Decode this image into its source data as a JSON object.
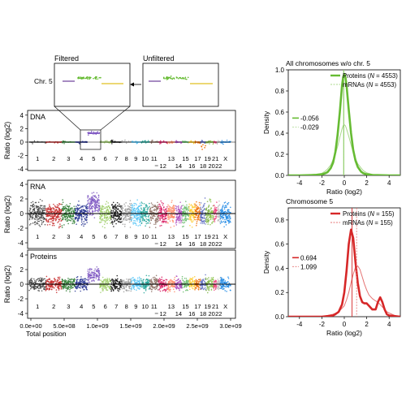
{
  "colors": {
    "green": "#66bb33",
    "green_light": "#a8d88a",
    "red": "#d62728",
    "red_light": "#e57373",
    "chromosome_palette": [
      "#444444",
      "#c62828",
      "#2e7d32",
      "#283593",
      "#7e57c2",
      "#9ccc65",
      "#111111",
      "#9e9e9e",
      "#4fc3f7",
      "#26a69a",
      "#8d6e63",
      "#d81b60",
      "#ff8a65",
      "#ab47bc",
      "#66bb6a",
      "#ffca28",
      "#ef6c00",
      "#5c6bc0",
      "#7cb342",
      "#8bc34a",
      "#ec407a",
      "#bdbdbd",
      "#1e88e5"
    ]
  },
  "chromosomes": [
    "1",
    "2",
    "3",
    "4",
    "5",
    "6",
    "7",
    "8",
    "9",
    "10",
    "11",
    "12",
    "13",
    "14",
    "15",
    "16",
    "17",
    "18",
    "19",
    "20",
    "21",
    "22",
    "X"
  ],
  "zoom": {
    "filtered_title": "Filtered",
    "unfiltered_title": "Unfiltered",
    "chr_label": "Chr. 5"
  },
  "genome_panels": {
    "ylabel": "Ratio (log2)",
    "xlabel": "Total position",
    "xtick_labels": [
      "0.0e+00",
      "5.0e+08",
      "1.0e+09",
      "1.5e+09",
      "2.0e+09",
      "2.5e+09",
      "3.0e+09"
    ],
    "panels": [
      {
        "label": "DNA",
        "yticks": [
          "4",
          "2",
          "0",
          "-2",
          "-4"
        ]
      },
      {
        "label": "RNA",
        "yticks": [
          "4",
          "2",
          "0",
          "-2",
          "-4"
        ]
      },
      {
        "label": "Proteins",
        "yticks": [
          "4",
          "2",
          "0",
          "-2",
          "-4"
        ]
      }
    ]
  },
  "chart_data": [
    {
      "type": "line",
      "title": "All chromosomes w/o chr. 5",
      "xlabel": "Ratio (log2)",
      "ylabel": "Density",
      "xlim": [
        -5,
        5
      ],
      "ylim": [
        0,
        1.0
      ],
      "xticks": [
        "-4",
        "-2",
        "0",
        "2",
        "4"
      ],
      "yticks": [
        "0.0",
        "0.2",
        "0.4",
        "0.6",
        "0.8",
        "1.0"
      ],
      "legend": [
        {
          "label": "Proteins (N = 4553)",
          "text": "Proteins (",
          "italic": "N",
          "rest": " = 4553)"
        },
        {
          "label": "mRNAs (N = 4553)",
          "text": "mRNAs (",
          "italic": "N",
          "rest": " = 4553)"
        }
      ],
      "medians": {
        "proteins": "-0.056",
        "mrnas": "-0.029"
      },
      "series": [
        {
          "name": "Proteins",
          "x": [
            -5,
            -4,
            -3,
            -2.5,
            -2,
            -1.7,
            -1.5,
            -1.2,
            -1,
            -0.8,
            -0.6,
            -0.4,
            -0.2,
            -0.1,
            0,
            0.1,
            0.2,
            0.4,
            0.6,
            0.8,
            1,
            1.2,
            1.5,
            1.7,
            2,
            2.5,
            3,
            4,
            5
          ],
          "y": [
            0,
            0,
            0.002,
            0.005,
            0.01,
            0.02,
            0.03,
            0.07,
            0.12,
            0.22,
            0.38,
            0.6,
            0.85,
            0.93,
            0.96,
            0.93,
            0.85,
            0.62,
            0.4,
            0.24,
            0.14,
            0.08,
            0.035,
            0.02,
            0.01,
            0.004,
            0.002,
            0,
            0
          ]
        },
        {
          "name": "mRNAs",
          "x": [
            -5,
            -4,
            -3,
            -2.5,
            -2,
            -1.7,
            -1.5,
            -1.2,
            -1,
            -0.8,
            -0.6,
            -0.4,
            -0.2,
            -0.1,
            0,
            0.1,
            0.2,
            0.4,
            0.6,
            0.8,
            1,
            1.2,
            1.5,
            1.7,
            2,
            2.5,
            3,
            4,
            5
          ],
          "y": [
            0,
            0,
            0.004,
            0.01,
            0.02,
            0.04,
            0.06,
            0.1,
            0.15,
            0.2,
            0.27,
            0.36,
            0.44,
            0.47,
            0.48,
            0.47,
            0.44,
            0.37,
            0.29,
            0.22,
            0.16,
            0.11,
            0.07,
            0.045,
            0.025,
            0.01,
            0.004,
            0,
            0
          ]
        }
      ]
    },
    {
      "type": "line",
      "title": "Chromosome 5",
      "xlabel": "Ratio (log2)",
      "ylabel": "Density",
      "xlim": [
        -5,
        5
      ],
      "ylim": [
        0,
        0.9
      ],
      "xticks": [
        "-4",
        "-2",
        "0",
        "2",
        "4"
      ],
      "yticks": [
        "0.0",
        "0.2",
        "0.4",
        "0.6",
        "0.8"
      ],
      "legend": [
        {
          "label": "Proteins (N = 155)",
          "text": "Proteins (",
          "italic": "N",
          "rest": " = 155)"
        },
        {
          "label": "mRNAs (N = 155)",
          "text": "mRNAs (",
          "italic": "N",
          "rest": " = 155)"
        }
      ],
      "medians": {
        "proteins": "0.694",
        "mrnas": "1.099"
      },
      "series": [
        {
          "name": "Proteins",
          "x": [
            -5,
            -2,
            -1.5,
            -1,
            -0.8,
            -0.5,
            -0.2,
            0,
            0.2,
            0.4,
            0.6,
            0.8,
            1,
            1.2,
            1.4,
            1.6,
            1.8,
            2.0,
            2.2,
            2.5,
            2.8,
            3.0,
            3.2,
            3.4,
            3.6,
            3.8,
            4,
            4.5,
            5
          ],
          "y": [
            0,
            0,
            0.005,
            0.01,
            0.02,
            0.04,
            0.1,
            0.2,
            0.38,
            0.6,
            0.72,
            0.65,
            0.45,
            0.28,
            0.17,
            0.12,
            0.11,
            0.11,
            0.09,
            0.06,
            0.06,
            0.12,
            0.16,
            0.12,
            0.06,
            0.02,
            0.01,
            0.005,
            0
          ]
        },
        {
          "name": "mRNAs",
          "x": [
            -5,
            -2,
            -1.5,
            -1,
            -0.5,
            0,
            0.2,
            0.4,
            0.6,
            0.8,
            1,
            1.2,
            1.4,
            1.6,
            1.8,
            2,
            2.2,
            2.5,
            2.8,
            3,
            3.2,
            3.5,
            3.8,
            4,
            4.5,
            5
          ],
          "y": [
            0,
            0,
            0.01,
            0.02,
            0.04,
            0.09,
            0.14,
            0.2,
            0.28,
            0.35,
            0.41,
            0.42,
            0.39,
            0.33,
            0.27,
            0.22,
            0.18,
            0.15,
            0.13,
            0.12,
            0.1,
            0.07,
            0.04,
            0.03,
            0.01,
            0
          ]
        }
      ]
    }
  ]
}
